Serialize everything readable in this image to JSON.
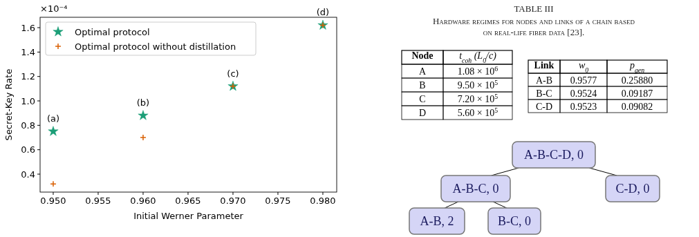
{
  "chart_data": [
    {
      "type": "scatter",
      "xlabel": "Initial Werner Parameter",
      "ylabel": "Secret-Key Rate",
      "x": [
        0.95,
        0.96,
        0.97,
        0.98
      ],
      "xlim": [
        0.94854,
        0.98154
      ],
      "ylim": [
        0.253,
        1.685
      ],
      "xticks": [
        {
          "value": 0.95,
          "label": "0.950"
        },
        {
          "value": 0.955,
          "label": "0.955"
        },
        {
          "value": 0.96,
          "label": "0.960"
        },
        {
          "value": 0.965,
          "label": "0.965"
        },
        {
          "value": 0.97,
          "label": "0.970"
        },
        {
          "value": 0.975,
          "label": "0.975"
        },
        {
          "value": 0.98,
          "label": "0.980"
        }
      ],
      "yticks": [
        {
          "value": 0.4,
          "label": "0.4"
        },
        {
          "value": 0.6,
          "label": "0.6"
        },
        {
          "value": 0.8,
          "label": "0.8"
        },
        {
          "value": 1.0,
          "label": "1.0"
        },
        {
          "value": 1.2,
          "label": "1.2"
        },
        {
          "value": 1.4,
          "label": "1.4"
        },
        {
          "value": 1.6,
          "label": "1.6"
        }
      ],
      "legend": "top left",
      "series": [
        {
          "name": "Optimal protocol",
          "color": "#1b9e77",
          "marker": "star",
          "values": [
            0.75,
            0.88,
            1.12,
            1.62
          ]
        },
        {
          "name": "Optimal protocol without distillation",
          "color": "#d95f02",
          "marker": "cross",
          "values": [
            0.32,
            0.7,
            1.12,
            1.62
          ]
        }
      ],
      "annotations": [
        "×10⁻⁴",
        {
          "text": "(a)",
          "x": 0.95,
          "y": 0.75
        },
        {
          "text": "(b)",
          "x": 0.96,
          "y": 0.88
        },
        {
          "text": "(c)",
          "x": 0.97,
          "y": 1.12
        },
        {
          "text": "(d)",
          "x": 0.98,
          "y": 1.62
        }
      ]
    },
    {
      "type": "other",
      "title": "TABLE III",
      "subtitle": "Hardware regimes for nodes and links of a chain based on real-life fiber data [23]."
    },
    {
      "type": "other",
      "categories": [
        "Node",
        "t$_{coh}$ (L$_{0}$/c)"
      ],
      "annotations": [
        "A",
        "1.08 × 10$^{6}$",
        "B",
        "9.50 × 10$^{5}$",
        "C",
        "7.20 × 10$^{5}$",
        "D",
        "5.60 × 10$^{5}$"
      ]
    },
    {
      "type": "other",
      "categories": [
        "Link",
        "w$_{0}$",
        "p$_{gen}$"
      ],
      "annotations": [
        "A-B",
        "0.9577",
        "0.25880",
        "B-C",
        "0.9524",
        "0.09187",
        "C-D",
        "0.9523",
        "0.09082"
      ]
    },
    {
      "type": "other",
      "annotations": [
        "A-B-C-D, 0",
        "A-B-C, 0",
        "C-D, 0",
        "A-B, 2",
        "B-C, 0"
      ]
    }
  ]
}
